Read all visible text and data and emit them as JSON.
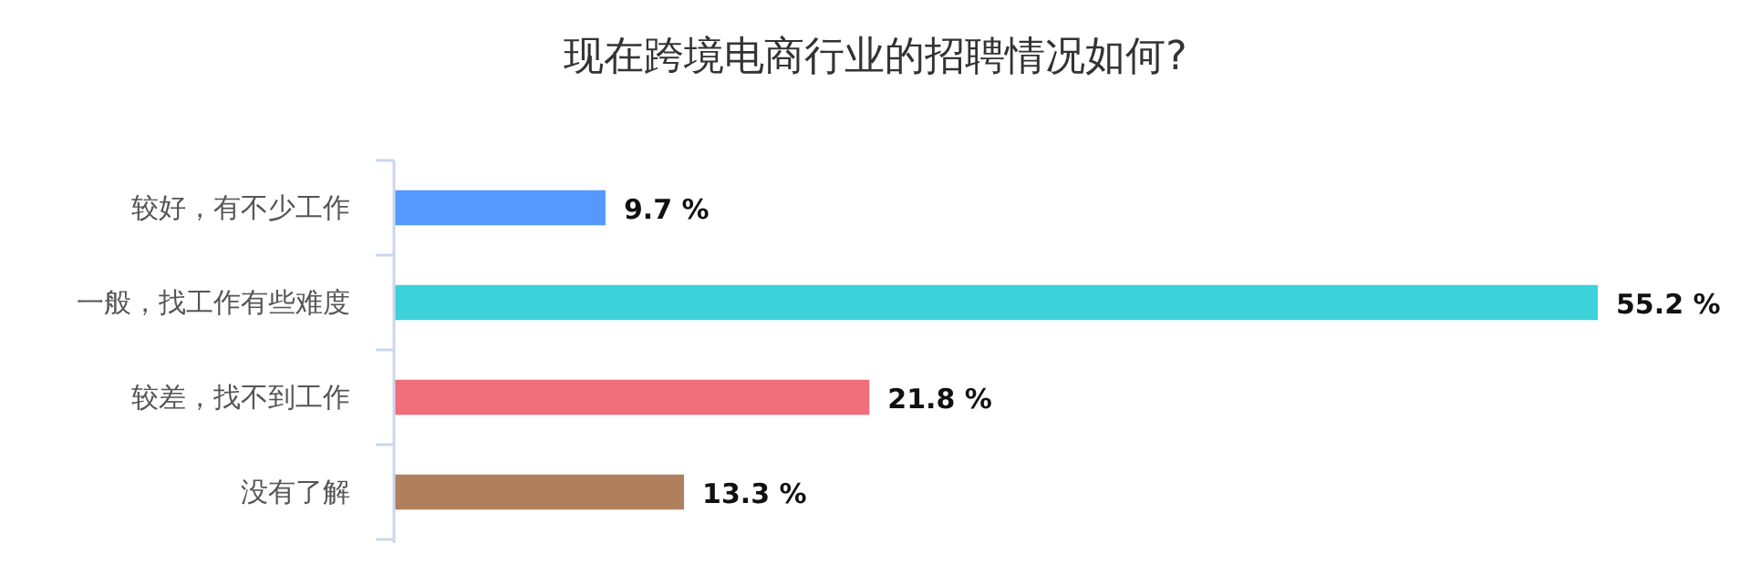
{
  "chart_data": {
    "type": "bar",
    "orientation": "horizontal",
    "title": "现在跨境电商行业的招聘情况如何?",
    "categories": [
      "较好，有不少工作",
      "一般，找工作有些难度",
      "较差，找不到工作",
      "没有了解"
    ],
    "values": [
      9.7,
      55.2,
      21.8,
      13.3
    ],
    "colors": [
      "#5599ff",
      "#3dd1d9",
      "#f06d7a",
      "#b07f5e"
    ],
    "value_labels": [
      "9.7 %",
      "55.2 %",
      "21.8 %",
      "13.3 %"
    ]
  }
}
